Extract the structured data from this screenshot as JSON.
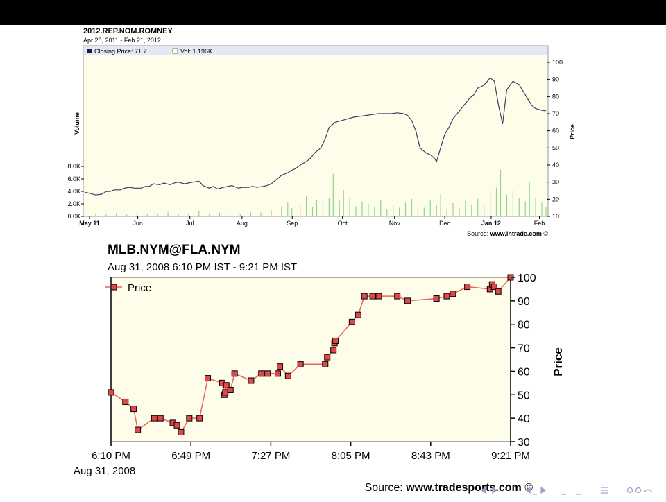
{
  "slide": {
    "bar_color": "#000000",
    "nav_icons": [
      "prev-frame-icon",
      "next-frame-icon",
      "prev-section-icon",
      "next-section-icon",
      "prev-subsection-icon",
      "next-subsection-icon",
      "align-icon",
      "search-icon"
    ]
  },
  "chart_data": [
    {
      "type": "line",
      "title": "2012.REP.NOM.ROMNEY",
      "subtitle": "Apr 28, 2011 - Feb 21, 2012",
      "legend": {
        "closing": "Closing Price: 71.7",
        "vol": "Vol: 1.196K",
        "placement": "top-left"
      },
      "ylabel": "Price",
      "ylabel2": "Volume",
      "ylim": [
        10,
        100
      ],
      "yticks": [
        "100",
        "90",
        "80",
        "70",
        "60",
        "50",
        "40",
        "30",
        "20",
        "10"
      ],
      "vol_ticks": [
        "8.0K",
        "6.0K",
        "4.0K",
        "2.0K",
        "0.0K"
      ],
      "vol_lim": [
        0,
        8
      ],
      "xticks": [
        "May 11",
        "Jun",
        "Jul",
        "Aug",
        "Sep",
        "Oct",
        "Nov",
        "Dec",
        "Jan 12",
        "Feb"
      ],
      "source_prefix": "Source: ",
      "source_site": "www.intrade.com",
      "source_mark": "©",
      "colors": {
        "line": "#3b3b6b",
        "volume": "#8fd58f",
        "background": "#fdfde9",
        "legend_band": "#e6e6f5"
      },
      "price_series": [
        [
          0,
          24
        ],
        [
          2,
          23.5
        ],
        [
          5,
          22.5
        ],
        [
          8,
          23
        ],
        [
          10,
          24.5
        ],
        [
          12,
          24.5
        ],
        [
          14,
          25.5
        ],
        [
          17,
          25.5
        ],
        [
          19,
          26.5
        ],
        [
          21,
          27
        ],
        [
          24,
          26.5
        ],
        [
          27,
          26.5
        ],
        [
          29,
          27.5
        ],
        [
          31,
          27.5
        ],
        [
          33,
          29
        ],
        [
          36,
          28.5
        ],
        [
          38,
          29.5
        ],
        [
          41,
          28.5
        ],
        [
          43,
          29.5
        ],
        [
          45,
          30
        ],
        [
          48,
          29
        ],
        [
          50,
          29.5
        ],
        [
          52,
          30
        ],
        [
          55,
          30.5
        ],
        [
          57,
          28
        ],
        [
          60,
          26.5
        ],
        [
          62,
          27.5
        ],
        [
          64,
          26
        ],
        [
          67,
          27
        ],
        [
          69,
          27.5
        ],
        [
          71,
          28
        ],
        [
          74,
          26.5
        ],
        [
          76,
          27
        ],
        [
          79,
          27
        ],
        [
          81,
          27.5
        ],
        [
          83,
          27
        ],
        [
          86,
          27.5
        ],
        [
          88,
          28
        ],
        [
          90,
          29
        ],
        [
          93,
          32
        ],
        [
          95,
          34
        ],
        [
          98,
          35.5
        ],
        [
          100,
          37
        ],
        [
          102,
          38
        ],
        [
          104,
          40
        ],
        [
          107,
          42
        ],
        [
          109,
          44
        ],
        [
          111,
          47
        ],
        [
          114,
          50
        ],
        [
          116,
          55
        ],
        [
          118,
          62
        ],
        [
          121,
          65
        ],
        [
          124,
          66
        ],
        [
          127,
          67
        ],
        [
          130,
          68
        ],
        [
          133,
          68.5
        ],
        [
          136,
          69
        ],
        [
          139,
          69.5
        ],
        [
          142,
          70
        ],
        [
          145,
          70
        ],
        [
          148,
          70
        ],
        [
          151,
          70.5
        ],
        [
          154,
          70
        ],
        [
          156,
          69
        ],
        [
          158,
          66
        ],
        [
          160,
          60
        ],
        [
          162,
          50
        ],
        [
          165,
          47
        ],
        [
          167,
          46
        ],
        [
          169,
          44
        ],
        [
          170,
          42
        ],
        [
          172,
          50
        ],
        [
          174,
          58
        ],
        [
          176,
          62
        ],
        [
          178,
          67
        ],
        [
          180,
          70
        ],
        [
          182,
          73
        ],
        [
          184,
          76
        ],
        [
          186,
          79
        ],
        [
          188,
          81
        ],
        [
          190,
          85
        ],
        [
          192,
          86
        ],
        [
          194,
          88
        ],
        [
          196,
          91
        ],
        [
          198,
          89
        ],
        [
          200,
          75
        ],
        [
          202,
          64
        ],
        [
          204,
          84
        ],
        [
          207,
          89
        ],
        [
          210,
          87
        ],
        [
          212,
          83
        ],
        [
          214,
          79
        ],
        [
          216,
          75
        ],
        [
          218,
          73
        ],
        [
          221,
          72
        ],
        [
          223,
          71.7
        ]
      ],
      "volume_series": [
        [
          0,
          0.2
        ],
        [
          5,
          0.4
        ],
        [
          10,
          0.3
        ],
        [
          15,
          0.5
        ],
        [
          20,
          0.3
        ],
        [
          25,
          0.6
        ],
        [
          30,
          0.4
        ],
        [
          35,
          0.5
        ],
        [
          40,
          0.7
        ],
        [
          45,
          0.4
        ],
        [
          50,
          0.5
        ],
        [
          55,
          0.9
        ],
        [
          60,
          0.4
        ],
        [
          65,
          0.6
        ],
        [
          70,
          0.5
        ],
        [
          75,
          0.4
        ],
        [
          80,
          0.7
        ],
        [
          85,
          0.6
        ],
        [
          90,
          1.0
        ],
        [
          95,
          1.6
        ],
        [
          98,
          2.2
        ],
        [
          100,
          1.3
        ],
        [
          104,
          2.0
        ],
        [
          107,
          3.3
        ],
        [
          110,
          1.5
        ],
        [
          112,
          2.6
        ],
        [
          115,
          2.2
        ],
        [
          118,
          3.0
        ],
        [
          120,
          6.8
        ],
        [
          123,
          2.5
        ],
        [
          125,
          4.2
        ],
        [
          128,
          3.0
        ],
        [
          131,
          1.6
        ],
        [
          134,
          2.4
        ],
        [
          137,
          2.0
        ],
        [
          140,
          1.5
        ],
        [
          143,
          2.6
        ],
        [
          146,
          1.2
        ],
        [
          149,
          1.9
        ],
        [
          152,
          1.4
        ],
        [
          155,
          2.2
        ],
        [
          158,
          2.8
        ],
        [
          161,
          1.2
        ],
        [
          164,
          1.4
        ],
        [
          167,
          2.6
        ],
        [
          170,
          1.8
        ],
        [
          172,
          3.6
        ],
        [
          175,
          1.2
        ],
        [
          178,
          2.1
        ],
        [
          181,
          1.4
        ],
        [
          184,
          2.5
        ],
        [
          187,
          1.8
        ],
        [
          190,
          2.8
        ],
        [
          193,
          2.0
        ],
        [
          196,
          4.0
        ],
        [
          199,
          4.6
        ],
        [
          201,
          7.5
        ],
        [
          204,
          3.5
        ],
        [
          207,
          4.2
        ],
        [
          210,
          3.0
        ],
        [
          213,
          2.4
        ],
        [
          215,
          5.5
        ],
        [
          218,
          3.0
        ],
        [
          221,
          2.2
        ],
        [
          223,
          1.5
        ]
      ]
    },
    {
      "type": "line",
      "title": "MLB.NYM@FLA.NYM",
      "subtitle": "Aug 31, 2008 6:10 PM IST - 9:21 PM IST",
      "legend": {
        "label": "Price",
        "placement": "top-left"
      },
      "ylabel": "Price",
      "ylim": [
        30,
        100
      ],
      "yticks": [
        "100",
        "90",
        "80",
        "70",
        "60",
        "50",
        "40",
        "30"
      ],
      "xticks": [
        "6:10 PM",
        "6:49 PM",
        "7:27 PM",
        "8:05 PM",
        "8:43 PM",
        "9:21 PM"
      ],
      "xdate": "Aug 31, 2008",
      "source_prefix": "Source: ",
      "source_site": "www.tradesports.com",
      "source_mark": "©",
      "colors": {
        "line": "#e86464",
        "marker": "#e04848",
        "background": "#fdfde9"
      },
      "points": [
        [
          0,
          51
        ],
        [
          7,
          47
        ],
        [
          11,
          44
        ],
        [
          13,
          35
        ],
        [
          21,
          40
        ],
        [
          24,
          40
        ],
        [
          30,
          38
        ],
        [
          32,
          37
        ],
        [
          34,
          34
        ],
        [
          38,
          40
        ],
        [
          43,
          40
        ],
        [
          47,
          57
        ],
        [
          54,
          55
        ],
        [
          55,
          50
        ],
        [
          55.5,
          51
        ],
        [
          56,
          54
        ],
        [
          58,
          52
        ],
        [
          60,
          59
        ],
        [
          68,
          56
        ],
        [
          73,
          59
        ],
        [
          76,
          59
        ],
        [
          81,
          59
        ],
        [
          82,
          62
        ],
        [
          86,
          58
        ],
        [
          92,
          63
        ],
        [
          104,
          63
        ],
        [
          105,
          66
        ],
        [
          108,
          69
        ],
        [
          108.5,
          72
        ],
        [
          109,
          73
        ],
        [
          117,
          81
        ],
        [
          120,
          84
        ],
        [
          123,
          92
        ],
        [
          127,
          92
        ],
        [
          130,
          92
        ],
        [
          139,
          92
        ],
        [
          144,
          90
        ],
        [
          158,
          91
        ],
        [
          163,
          92
        ],
        [
          166,
          93
        ],
        [
          173,
          96
        ],
        [
          184,
          95
        ],
        [
          185,
          97
        ],
        [
          186,
          96
        ],
        [
          188,
          94
        ],
        [
          194,
          100
        ]
      ]
    }
  ]
}
